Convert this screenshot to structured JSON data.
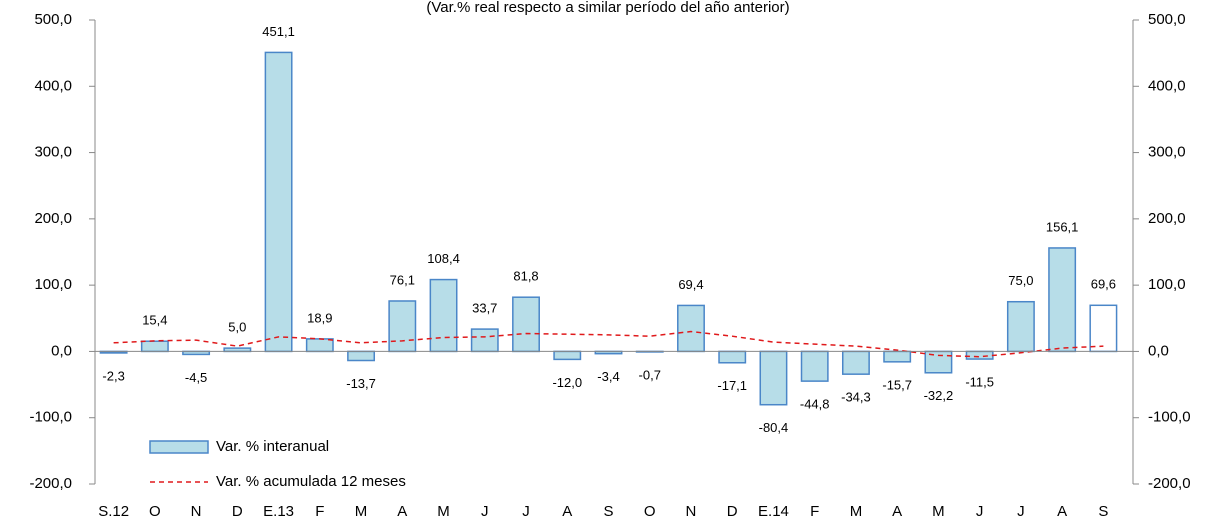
{
  "chart_data": {
    "type": "bar",
    "subtitle": "(Var.% real respecto a similar período del año anterior)",
    "categories": [
      "S.12",
      "O",
      "N",
      "D",
      "E.13",
      "F",
      "M",
      "A",
      "M",
      "J",
      "J",
      "A",
      "S",
      "O",
      "N",
      "D",
      "E.14",
      "F",
      "M",
      "A",
      "M",
      "J",
      "J",
      "A",
      "S"
    ],
    "series": [
      {
        "name": "Var. % interanual",
        "type": "bar",
        "color": "#b7dde8",
        "edge_color": "#4a86c8",
        "colors": [
          "#b7dde8",
          "#b7dde8",
          "#b7dde8",
          "#b7dde8",
          "#b7dde8",
          "#b7dde8",
          "#b7dde8",
          "#b7dde8",
          "#b7dde8",
          "#b7dde8",
          "#b7dde8",
          "#b7dde8",
          "#b7dde8",
          "#b7dde8",
          "#b7dde8",
          "#b7dde8",
          "#b7dde8",
          "#b7dde8",
          "#b7dde8",
          "#b7dde8",
          "#b7dde8",
          "#b7dde8",
          "#b7dde8",
          "#b7dde8",
          "#ffffff"
        ],
        "values": [
          -2.3,
          15.4,
          -4.5,
          5.0,
          451.1,
          18.9,
          -13.7,
          76.1,
          108.4,
          33.7,
          81.8,
          -12.0,
          -3.4,
          -0.7,
          69.4,
          -17.1,
          -80.4,
          -44.8,
          -34.3,
          -15.7,
          -32.2,
          -11.5,
          75.0,
          156.1,
          69.6
        ],
        "value_labels": [
          "-2,3",
          "15,4",
          "-4,5",
          "5,0",
          "451,1",
          "18,9",
          "-13,7",
          "76,1",
          "108,4",
          "33,7",
          "81,8",
          "-12,0",
          "-3,4",
          "-0,7",
          "69,4",
          "-17,1",
          "-80,4",
          "-44,8",
          "-34,3",
          "-15,7",
          "-32,2",
          "-11,5",
          "75,0",
          "156,1",
          "69,6"
        ]
      },
      {
        "name": "Var. % acumulada 12 meses",
        "type": "line",
        "color": "#e0191b",
        "dashed": true,
        "values": [
          13,
          16,
          17,
          8,
          22,
          19,
          13,
          16,
          21,
          22,
          27,
          26,
          25,
          23,
          30,
          23,
          14,
          11,
          8,
          2,
          -6,
          -8,
          -2,
          5,
          8
        ]
      }
    ],
    "ylim": [
      -200,
      500
    ],
    "yticks": [
      {
        "value": -200,
        "label": "-200,0"
      },
      {
        "value": -100,
        "label": "-100,0"
      },
      {
        "value": 0,
        "label": "0,0"
      },
      {
        "value": 100,
        "label": "100,0"
      },
      {
        "value": 200,
        "label": "200,0"
      },
      {
        "value": 300,
        "label": "300,0"
      },
      {
        "value": 400,
        "label": "400,0"
      },
      {
        "value": 500,
        "label": "500,0"
      }
    ],
    "y2lim": [
      -200,
      500
    ],
    "y2ticks": [
      {
        "value": -200,
        "label": "-200,0"
      },
      {
        "value": -100,
        "label": "-100,0"
      },
      {
        "value": 0,
        "label": "0,0"
      },
      {
        "value": 100,
        "label": "100,0"
      },
      {
        "value": 200,
        "label": "200,0"
      },
      {
        "value": 300,
        "label": "300,0"
      },
      {
        "value": 400,
        "label": "400,0"
      },
      {
        "value": 500,
        "label": "500,0"
      }
    ],
    "legend": "lower-left"
  }
}
